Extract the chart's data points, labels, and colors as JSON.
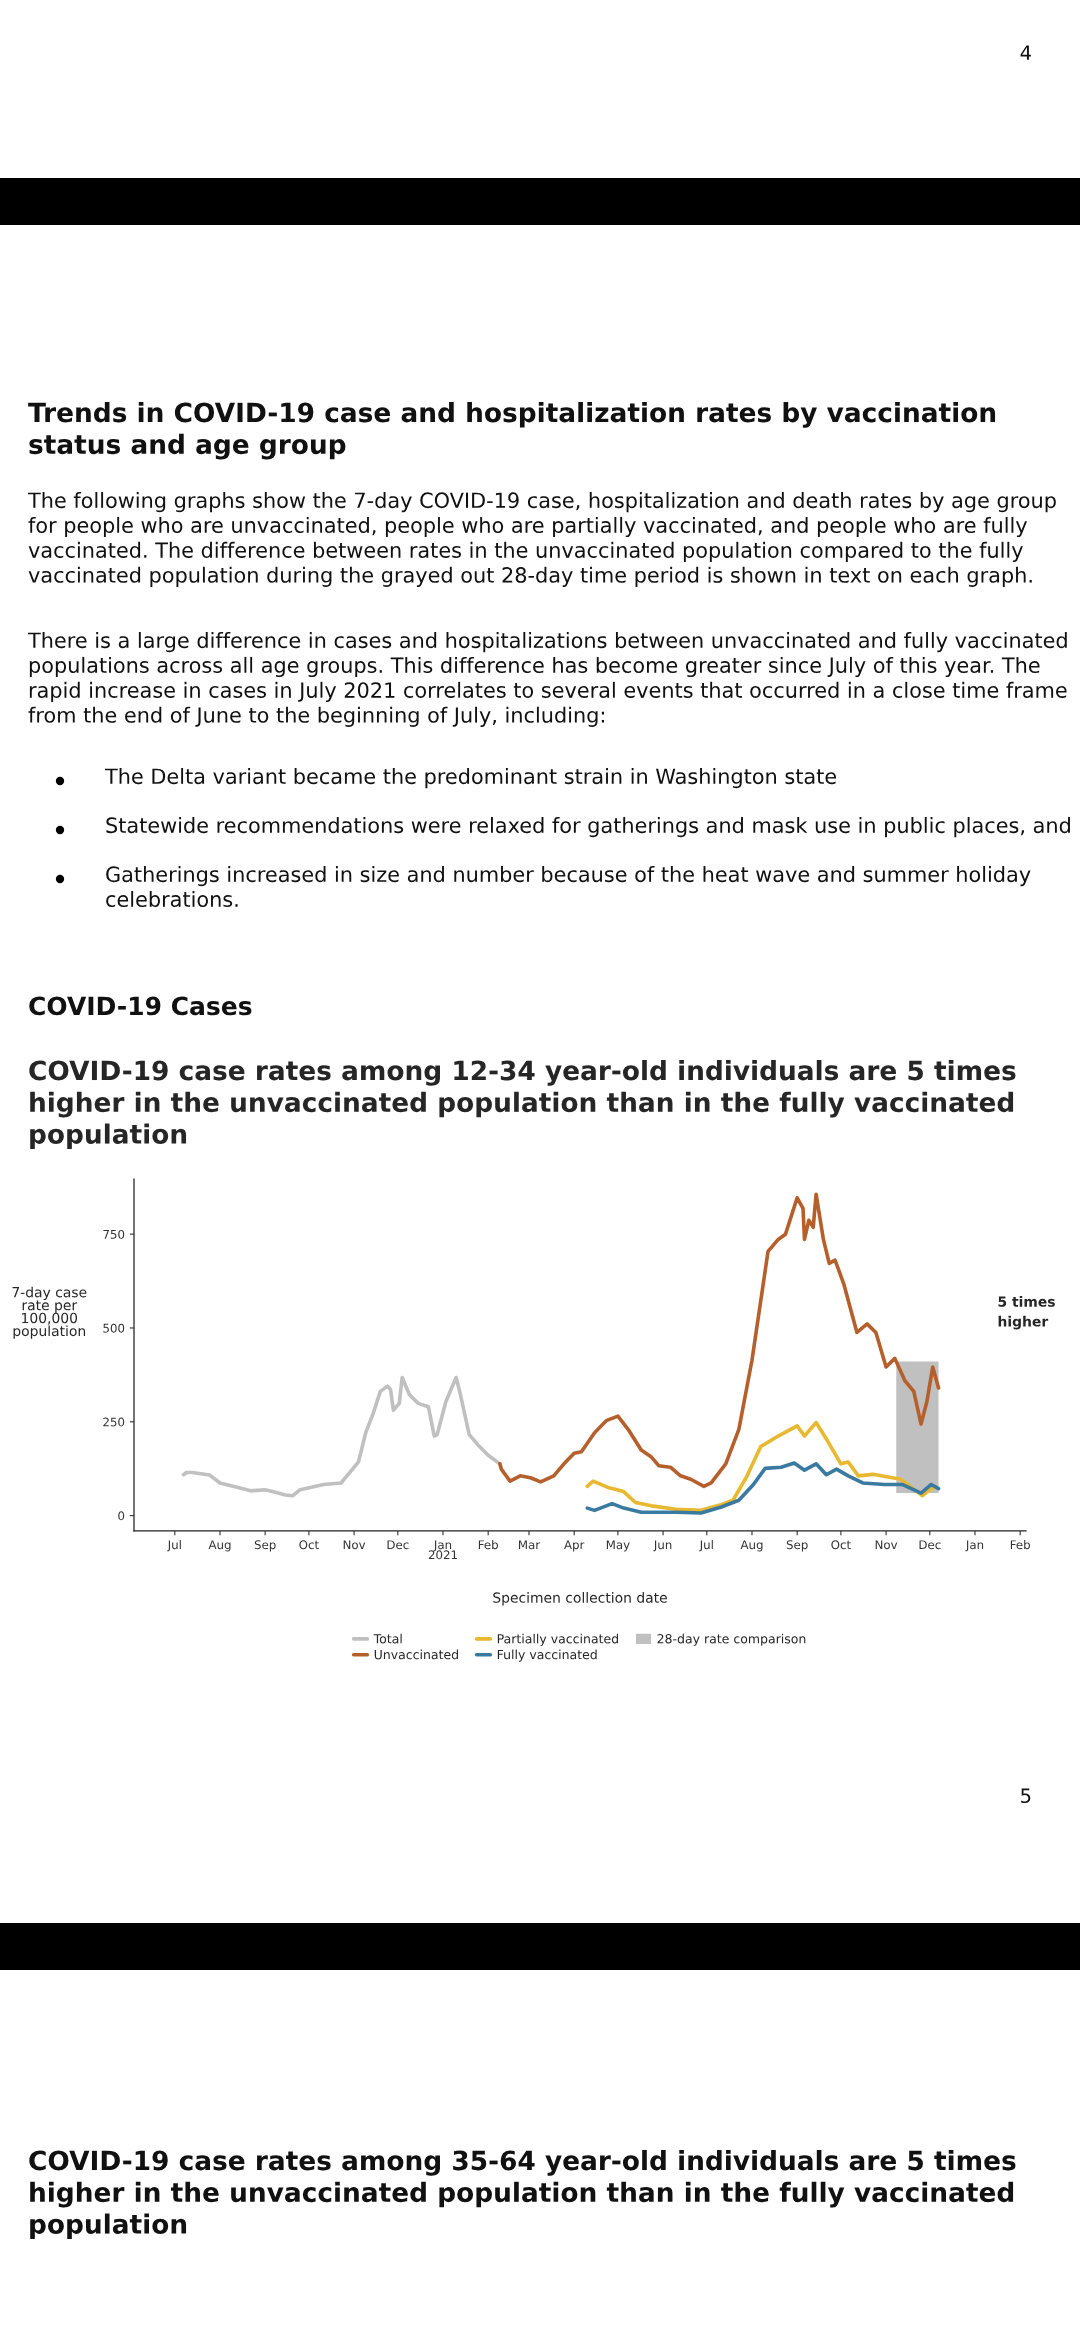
{
  "chart_data": {
    "type": "line",
    "title": "COVID-19 case rates among 12-34 year-old individuals are 5 times higher in the unvaccinated population than in the fully vaccinated population",
    "xlabel": "Specimen collection date",
    "ylabel": "7-day case rate per 100,000 population",
    "xlim": [
      "2020-06-03",
      "2022-02-05"
    ],
    "xticks": [
      {
        "value": "2020-07-01",
        "label": "Jul"
      },
      {
        "value": "2020-08-01",
        "label": "Aug"
      },
      {
        "value": "2020-09-01",
        "label": "Sep"
      },
      {
        "value": "2020-10-01",
        "label": "Oct"
      },
      {
        "value": "2020-11-01",
        "label": "Nov"
      },
      {
        "value": "2020-12-01",
        "label": "Dec"
      },
      {
        "value": "2021-01-01",
        "label": "Jan\n2021"
      },
      {
        "value": "2021-02-01",
        "label": "Feb"
      },
      {
        "value": "2021-03-01",
        "label": "Mar"
      },
      {
        "value": "2021-04-01",
        "label": "Apr"
      },
      {
        "value": "2021-05-01",
        "label": "May"
      },
      {
        "value": "2021-06-01",
        "label": "Jun"
      },
      {
        "value": "2021-07-01",
        "label": "Jul"
      },
      {
        "value": "2021-08-01",
        "label": "Aug"
      },
      {
        "value": "2021-09-01",
        "label": "Sep"
      },
      {
        "value": "2021-10-01",
        "label": "Oct"
      },
      {
        "value": "2021-11-01",
        "label": "Nov"
      },
      {
        "value": "2021-12-01",
        "label": "Dec"
      },
      {
        "value": "2022-01-01",
        "label": "Jan"
      },
      {
        "value": "2022-02-01",
        "label": "Feb"
      }
    ],
    "ylim": [
      -41,
      897
    ],
    "yticks": [
      0,
      250,
      500,
      750
    ],
    "grid": false,
    "legend": "bottom",
    "series": [
      {
        "name": "Total",
        "color": "#c0c0c0",
        "x": [
          "2020-07-07",
          "2020-07-09",
          "2020-07-13",
          "2020-07-25",
          "2020-08-01",
          "2020-08-10",
          "2020-08-22",
          "2020-09-01",
          "2020-09-08",
          "2020-09-15",
          "2020-09-20",
          "2020-09-25",
          "2020-10-02",
          "2020-10-11",
          "2020-10-23",
          "2020-10-28",
          "2020-11-04",
          "2020-11-09",
          "2020-11-14",
          "2020-11-19",
          "2020-11-24",
          "2020-11-26",
          "2020-11-28",
          "2020-12-02",
          "2020-12-04",
          "2020-12-09",
          "2020-12-15",
          "2020-12-22",
          "2020-12-26",
          "2020-12-28",
          "2021-01-03",
          "2021-01-10",
          "2021-01-13",
          "2021-01-19",
          "2021-01-26",
          "2021-02-01",
          "2021-02-09"
        ],
        "values": [
          109,
          115,
          115,
          108,
          87,
          78,
          66,
          69,
          62,
          55,
          53,
          69,
          75,
          83,
          87,
          110,
          143,
          221,
          271,
          331,
          345,
          336,
          281,
          299,
          368,
          322,
          299,
          290,
          212,
          216,
          304,
          368,
          322,
          216,
          184,
          161,
          138
        ]
      },
      {
        "name": "Unvaccinated",
        "color": "#b5602c",
        "x": [
          "2021-02-09",
          "2021-02-10",
          "2021-02-16",
          "2021-02-23",
          "2021-03-02",
          "2021-03-09",
          "2021-03-18",
          "2021-03-25",
          "2021-04-01",
          "2021-04-06",
          "2021-04-15",
          "2021-04-23",
          "2021-05-01",
          "2021-05-08",
          "2021-05-17",
          "2021-05-24",
          "2021-05-29",
          "2021-06-06",
          "2021-06-13",
          "2021-06-20",
          "2021-06-29",
          "2021-07-04",
          "2021-07-14",
          "2021-07-23",
          "2021-08-01",
          "2021-08-12",
          "2021-08-19",
          "2021-08-24",
          "2021-09-01",
          "2021-09-05",
          "2021-09-06",
          "2021-09-09",
          "2021-09-12",
          "2021-09-14",
          "2021-09-19",
          "2021-09-23",
          "2021-09-27",
          "2021-10-03",
          "2021-10-12",
          "2021-10-19",
          "2021-10-25",
          "2021-11-01",
          "2021-11-07",
          "2021-11-14",
          "2021-11-20",
          "2021-11-25",
          "2021-11-29",
          "2021-12-03",
          "2021-12-07"
        ],
        "values": [
          138,
          124,
          92,
          106,
          101,
          90,
          106,
          138,
          166,
          170,
          221,
          253,
          265,
          230,
          175,
          156,
          133,
          129,
          106,
          97,
          78,
          87,
          138,
          230,
          414,
          704,
          736,
          750,
          847,
          819,
          736,
          787,
          768,
          856,
          736,
          672,
          681,
          617,
          488,
          511,
          488,
          396,
          419,
          359,
          331,
          244,
          304,
          396,
          340
        ]
      },
      {
        "name": "Partially vaccinated",
        "color": "#e8b830",
        "x": [
          "2021-04-10",
          "2021-04-14",
          "2021-04-25",
          "2021-05-05",
          "2021-05-13",
          "2021-05-24",
          "2021-06-10",
          "2021-06-27",
          "2021-07-10",
          "2021-07-19",
          "2021-07-28",
          "2021-08-07",
          "2021-08-19",
          "2021-09-01",
          "2021-09-06",
          "2021-09-14",
          "2021-09-22",
          "2021-10-01",
          "2021-10-06",
          "2021-10-13",
          "2021-10-23",
          "2021-11-11",
          "2021-11-19",
          "2021-11-26",
          "2021-12-01",
          "2021-12-05"
        ],
        "values": [
          78,
          92,
          74,
          64,
          35,
          26,
          17,
          14,
          28,
          41,
          101,
          184,
          212,
          239,
          212,
          248,
          198,
          138,
          143,
          106,
          110,
          97,
          74,
          53,
          69,
          78
        ]
      },
      {
        "name": "Fully vaccinated",
        "color": "#3a7aa0",
        "x": [
          "2021-04-10",
          "2021-04-15",
          "2021-04-27",
          "2021-05-05",
          "2021-05-17",
          "2021-06-10",
          "2021-06-27",
          "2021-07-11",
          "2021-07-23",
          "2021-08-02",
          "2021-08-10",
          "2021-08-21",
          "2021-08-30",
          "2021-09-06",
          "2021-09-14",
          "2021-09-21",
          "2021-09-28",
          "2021-10-06",
          "2021-10-16",
          "2021-10-31",
          "2021-11-12",
          "2021-11-25",
          "2021-12-02",
          "2021-12-07"
        ],
        "values": [
          20,
          14,
          32,
          20,
          9,
          9,
          7,
          23,
          41,
          83,
          126,
          129,
          140,
          121,
          138,
          109,
          124,
          106,
          87,
          83,
          83,
          60,
          83,
          72
        ]
      }
    ],
    "bands": [
      {
        "axis": "x",
        "from": "2021-11-08",
        "to": "2021-12-07",
        "label": "28-day rate comparison",
        "color": "#c0c0c0"
      }
    ],
    "annotations": [
      "4",
      "Trends in COVID-19 case and hospitalization rates by vaccination status and age group",
      "The following graphs show the 7-day COVID-19 case, hospitalization and death rates by age group for people who are unvaccinated, people who are partially vaccinated, and people who are fully vaccinated. The difference between rates in the unvaccinated population compared to the fully vaccinated population during the grayed out 28-day time period is shown in text on each graph.",
      "There is a large difference in cases and hospitalizations between unvaccinated and fully vaccinated populations across all age groups. This difference has become greater since July of this year. The rapid increase in cases in July 2021 correlates to several events that occurred in a close time frame from the end of June to the beginning of July, including:",
      "The Delta variant became the predominant strain in Washington state",
      "Statewide recommendations were relaxed for gatherings and mask use in public places, and",
      "Gatherings increased in size and number because of the heat wave and summer holiday celebrations.",
      "COVID-19 Cases",
      "5 times\nhigher",
      "5",
      "COVID-19 case rates among 35-64 year-old individuals are 5 times higher in the unvaccinated population than in the fully vaccinated population"
    ]
  }
}
